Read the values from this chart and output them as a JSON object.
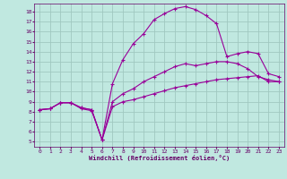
{
  "xlabel": "Windchill (Refroidissement éolien,°C)",
  "ylabel": "",
  "bg_color": "#c0e8e0",
  "line_color": "#990099",
  "grid_color": "#a0c8c0",
  "xlim": [
    -0.5,
    23.5
  ],
  "ylim": [
    4.5,
    18.8
  ],
  "xticks": [
    0,
    1,
    2,
    3,
    4,
    5,
    6,
    7,
    8,
    9,
    10,
    11,
    12,
    13,
    14,
    15,
    16,
    17,
    18,
    19,
    20,
    21,
    22,
    23
  ],
  "yticks": [
    5,
    6,
    7,
    8,
    9,
    10,
    11,
    12,
    13,
    14,
    15,
    16,
    17,
    18
  ],
  "lines": [
    {
      "x": [
        0,
        1,
        2,
        3,
        4,
        5,
        6,
        7,
        8,
        9,
        10,
        11,
        12,
        13,
        14,
        15,
        16,
        17,
        18,
        19,
        20,
        21,
        22,
        23
      ],
      "y": [
        8.2,
        8.3,
        8.9,
        8.9,
        8.4,
        8.2,
        5.2,
        8.5,
        9.0,
        9.2,
        9.5,
        9.8,
        10.1,
        10.4,
        10.6,
        10.8,
        11.0,
        11.2,
        11.3,
        11.4,
        11.5,
        11.6,
        11.0,
        11.0
      ]
    },
    {
      "x": [
        0,
        1,
        2,
        3,
        4,
        5,
        6,
        7,
        8,
        9,
        10,
        11,
        12,
        13,
        14,
        15,
        16,
        17,
        18,
        19,
        20,
        21,
        22,
        23
      ],
      "y": [
        8.2,
        8.3,
        8.9,
        8.9,
        8.4,
        8.2,
        5.2,
        9.0,
        9.8,
        10.3,
        11.0,
        11.5,
        12.0,
        12.5,
        12.8,
        12.6,
        12.8,
        13.0,
        13.0,
        12.8,
        12.3,
        11.5,
        11.2,
        11.0
      ]
    },
    {
      "x": [
        0,
        1,
        2,
        3,
        4,
        5,
        6,
        7,
        8,
        9,
        10,
        11,
        12,
        13,
        14,
        15,
        16,
        17,
        18,
        19,
        20,
        21,
        22,
        23
      ],
      "y": [
        8.2,
        8.3,
        8.9,
        8.9,
        8.3,
        8.1,
        5.2,
        10.8,
        13.2,
        14.8,
        15.8,
        17.2,
        17.8,
        18.3,
        18.5,
        18.2,
        17.6,
        16.8,
        13.5,
        13.8,
        14.0,
        13.8,
        11.8,
        11.5
      ]
    }
  ]
}
